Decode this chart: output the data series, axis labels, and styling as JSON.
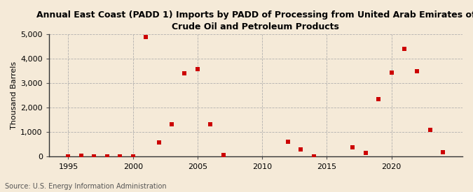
{
  "title": "Annual East Coast (PADD 1) Imports by PADD of Processing from United Arab Emirates of\nCrude Oil and Petroleum Products",
  "ylabel": "Thousand Barrels",
  "source": "Source: U.S. Energy Information Administration",
  "background_color": "#f5ead8",
  "plot_bg_color": "#f5ead8",
  "point_color": "#cc0000",
  "years": [
    1995,
    1996,
    1997,
    1998,
    1999,
    2000,
    2001,
    2002,
    2003,
    2004,
    2005,
    2006,
    2007,
    2012,
    2013,
    2014,
    2017,
    2018,
    2019,
    2020,
    2021,
    2022,
    2023,
    2024
  ],
  "values": [
    5,
    30,
    15,
    15,
    15,
    8,
    4890,
    570,
    1320,
    3400,
    3560,
    1320,
    80,
    600,
    300,
    15,
    380,
    150,
    2360,
    3440,
    4390,
    3480,
    1090,
    195
  ],
  "ylim": [
    0,
    5000
  ],
  "xlim": [
    1993.5,
    2025.5
  ],
  "yticks": [
    0,
    1000,
    2000,
    3000,
    4000,
    5000
  ],
  "xticks": [
    1995,
    2000,
    2005,
    2010,
    2015,
    2020
  ],
  "title_fontsize": 9,
  "axis_label_fontsize": 8,
  "tick_fontsize": 8,
  "source_fontsize": 7
}
